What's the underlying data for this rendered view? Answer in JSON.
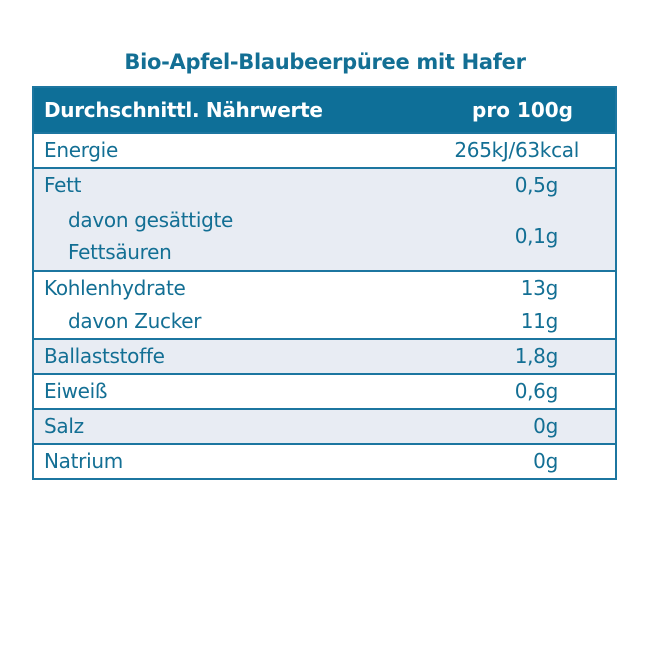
{
  "title": "Bio-Apfel-Blaubeerpüree mit Hafer",
  "header": {
    "label": "Durchschnittl. Nährwerte",
    "value": "pro 100g"
  },
  "rows": {
    "energie": {
      "label": "Energie",
      "value": "265kJ/63kcal"
    },
    "fett": {
      "label": "Fett",
      "value": "0,5g"
    },
    "gesaettigte": {
      "label_line1": "davon gesättigte",
      "label_line2": "Fettsäuren",
      "value": "0,1g"
    },
    "kohlenhydrate": {
      "label": "Kohlenhydrate",
      "value": "13g"
    },
    "zucker": {
      "label": "davon Zucker",
      "value": "11g"
    },
    "ballaststoffe": {
      "label": "Ballaststoffe",
      "value": "1,8g"
    },
    "eiweiss": {
      "label": "Eiweiß",
      "value": "0,6g"
    },
    "salz": {
      "label": "Salz",
      "value": "0g"
    },
    "natrium": {
      "label": "Natrium",
      "value": "0g"
    }
  },
  "colors": {
    "primary": "#136f94",
    "header_bg": "#0e6f98",
    "shaded_row": "#e8ecf3"
  }
}
